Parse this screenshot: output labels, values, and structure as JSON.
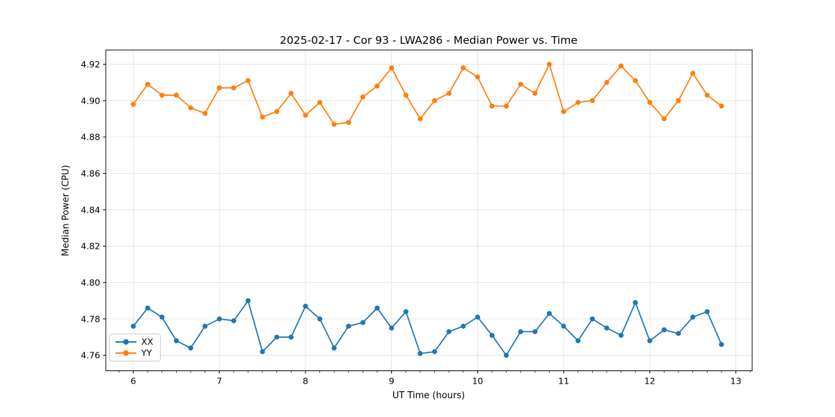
{
  "chart_data": {
    "type": "line",
    "title": "2025-02-17 - Cor 93 - LWA286 - Median Power vs. Time",
    "xlabel": "UT Time (hours)",
    "ylabel": "Median Power (CPU)",
    "xlim": [
      5.68,
      13.19
    ],
    "ylim": [
      4.7515,
      4.9278
    ],
    "xticks": [
      6,
      7,
      8,
      9,
      10,
      11,
      12,
      13
    ],
    "yticks": [
      4.76,
      4.78,
      4.8,
      4.82,
      4.84,
      4.86,
      4.88,
      4.9,
      4.92
    ],
    "x_minor_interval": 0.1666667,
    "grid": true,
    "legend_position": "lower-left",
    "grid_color": "#e6e6e6",
    "x": [
      6.0,
      6.167,
      6.333,
      6.5,
      6.667,
      6.833,
      7.0,
      7.167,
      7.333,
      7.5,
      7.667,
      7.833,
      8.0,
      8.167,
      8.333,
      8.5,
      8.667,
      8.833,
      9.0,
      9.167,
      9.333,
      9.5,
      9.667,
      9.833,
      10.0,
      10.167,
      10.333,
      10.5,
      10.667,
      10.833,
      11.0,
      11.167,
      11.333,
      11.5,
      11.667,
      11.833,
      12.0,
      12.167,
      12.333,
      12.5,
      12.667,
      12.833
    ],
    "series": [
      {
        "name": "XX",
        "color": "#1f77b4",
        "values": [
          4.776,
          4.786,
          4.781,
          4.768,
          4.764,
          4.776,
          4.78,
          4.779,
          4.79,
          4.762,
          4.77,
          4.77,
          4.787,
          4.78,
          4.764,
          4.776,
          4.778,
          4.786,
          4.775,
          4.784,
          4.761,
          4.762,
          4.773,
          4.776,
          4.781,
          4.771,
          4.76,
          4.773,
          4.773,
          4.783,
          4.776,
          4.768,
          4.78,
          4.775,
          4.771,
          4.789,
          4.768,
          4.774,
          4.772,
          4.781,
          4.784,
          4.766
        ]
      },
      {
        "name": "YY",
        "color": "#ff7f0e",
        "values": [
          4.898,
          4.909,
          4.903,
          4.903,
          4.896,
          4.893,
          4.907,
          4.907,
          4.911,
          4.891,
          4.894,
          4.904,
          4.892,
          4.899,
          4.887,
          4.888,
          4.902,
          4.908,
          4.918,
          4.903,
          4.89,
          4.9,
          4.904,
          4.918,
          4.913,
          4.897,
          4.897,
          4.909,
          4.904,
          4.92,
          4.894,
          4.899,
          4.9,
          4.91,
          4.919,
          4.911,
          4.899,
          4.89,
          4.9,
          4.915,
          4.903,
          4.897
        ]
      }
    ]
  }
}
